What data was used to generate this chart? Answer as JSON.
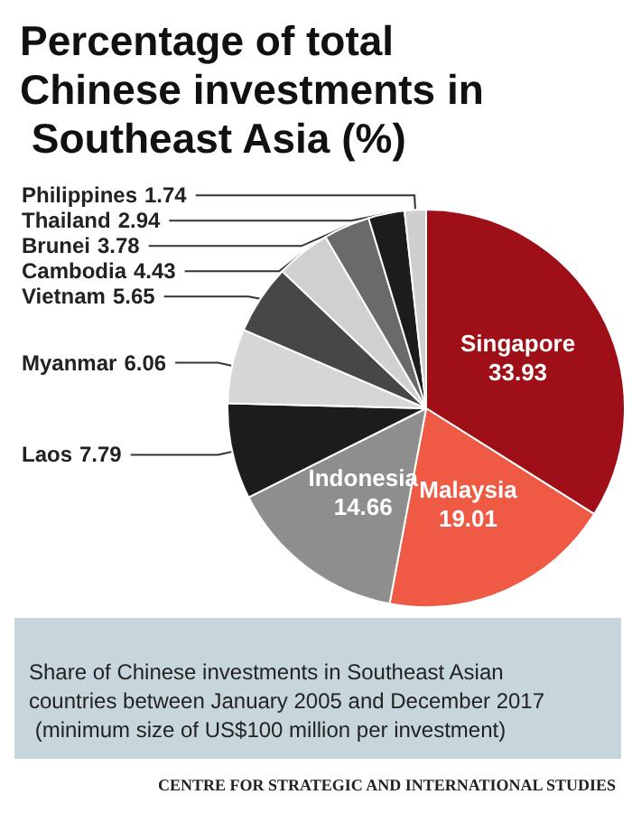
{
  "chart_data": {
    "type": "pie",
    "title": "Percentage of total Chinese investments in Southeast Asia (%)",
    "categories": [
      "Singapore",
      "Malaysia",
      "Indonesia",
      "Laos",
      "Myanmar",
      "Vietnam",
      "Cambodia",
      "Brunei",
      "Thailand",
      "Philippines"
    ],
    "values": [
      33.93,
      19.01,
      14.66,
      7.79,
      6.06,
      5.65,
      4.43,
      3.78,
      2.94,
      1.74
    ],
    "colors": [
      "#9e0f17",
      "#ef5a45",
      "#8e8e8e",
      "#1c1c1c",
      "#d6d6d6",
      "#474747",
      "#d0d0d0",
      "#6a6a6a",
      "#1c1c1c",
      "#cfcfcf"
    ],
    "data_labels": true,
    "annotations": [
      "Share of Chinese investments in Southeast Asian countries between January 2005 and December 2017 (minimum size of US$100 million per investment)",
      "CENTRE FOR STRATEGIC AND INTERNATIONAL STUDIES"
    ]
  }
}
